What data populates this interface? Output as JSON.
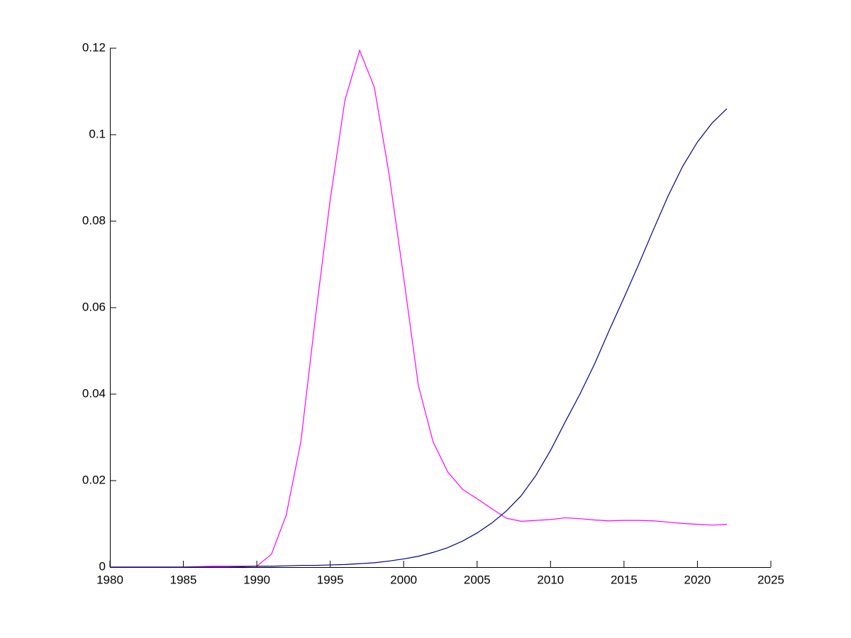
{
  "chart_data": {
    "type": "line",
    "x": [
      1980,
      1981,
      1982,
      1983,
      1984,
      1985,
      1986,
      1987,
      1988,
      1989,
      1990,
      1991,
      1992,
      1993,
      1994,
      1995,
      1996,
      1997,
      1998,
      1999,
      2000,
      2001,
      2002,
      2003,
      2004,
      2005,
      2006,
      2007,
      2008,
      2009,
      2010,
      2011,
      2012,
      2013,
      2014,
      2015,
      2016,
      2017,
      2018,
      2019,
      2020,
      2021,
      2022
    ],
    "series": [
      {
        "color": "#ff00ff",
        "values": [
          0,
          0,
          0,
          0,
          0,
          0,
          0.0001,
          0.0002,
          0.0002,
          0.0002,
          0.0002,
          0.003,
          0.012,
          0.029,
          0.058,
          0.085,
          0.108,
          0.1195,
          0.111,
          0.091,
          0.067,
          0.042,
          0.029,
          0.022,
          0.018,
          0.0158,
          0.0135,
          0.0113,
          0.0106,
          0.0108,
          0.011,
          0.0114,
          0.0112,
          0.0109,
          0.0107,
          0.0108,
          0.0108,
          0.0107,
          0.0104,
          0.0101,
          0.0099,
          0.0097,
          0.0099
        ]
      },
      {
        "color": "#00008b",
        "values": [
          0,
          0,
          0,
          0,
          0,
          0,
          0,
          0,
          0,
          0.0001,
          0.0002,
          0.0002,
          0.0003,
          0.0004,
          0.0004,
          0.0005,
          0.0006,
          0.0008,
          0.001,
          0.0014,
          0.0019,
          0.0025,
          0.0034,
          0.0045,
          0.006,
          0.0079,
          0.0102,
          0.013,
          0.0165,
          0.0212,
          0.027,
          0.0336,
          0.04,
          0.047,
          0.0548,
          0.0623,
          0.07,
          0.078,
          0.0858,
          0.0927,
          0.0983,
          0.1027,
          0.106
        ]
      }
    ],
    "xlim": [
      1980,
      2025
    ],
    "xticks": [
      1980,
      1985,
      1990,
      1995,
      2000,
      2005,
      2010,
      2015,
      2020,
      2025
    ],
    "ylim": [
      0,
      0.12
    ],
    "yticks": [
      0,
      0.02,
      0.04,
      0.06,
      0.08,
      0.1,
      0.12
    ]
  }
}
